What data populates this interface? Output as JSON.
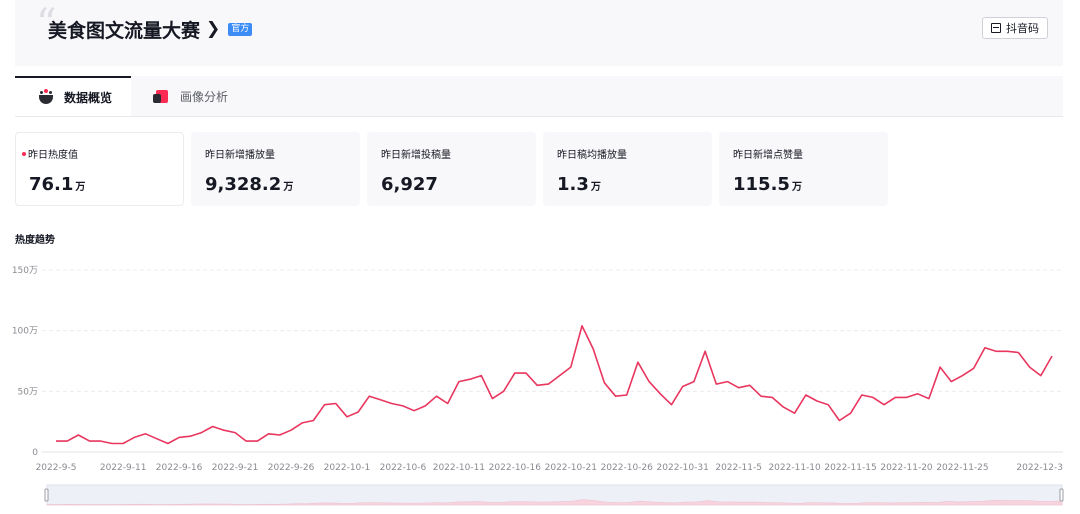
{
  "header": {
    "title": "美食图文流量大赛",
    "chevron": "❯",
    "badge": "官方",
    "douyin_button": "抖音码"
  },
  "tabs": [
    {
      "label": "数据概览",
      "active": true
    },
    {
      "label": "画像分析",
      "active": false
    }
  ],
  "metrics": [
    {
      "label": "昨日热度值",
      "value": "76.1",
      "unit": "万",
      "highlight": true
    },
    {
      "label": "昨日新增播放量",
      "value": "9,328.2",
      "unit": "万"
    },
    {
      "label": "昨日新增投稿量",
      "value": "6,927",
      "unit": ""
    },
    {
      "label": "昨日稿均播放量",
      "value": "1.3",
      "unit": "万"
    },
    {
      "label": "昨日新增点赞量",
      "value": "115.5",
      "unit": "万"
    }
  ],
  "section_title": "热度趋势",
  "colors": {
    "line": "#e8365e",
    "accent": "#fe2c55",
    "badge": "#3c8cf6"
  },
  "chart_data": {
    "type": "line",
    "title": "热度趋势",
    "ylim": [
      0,
      150
    ],
    "yticks": [
      "0",
      "50万",
      "100万",
      "150万"
    ],
    "ytick_values": [
      0,
      50,
      100,
      150
    ],
    "xtick_labels": [
      "2022-9-5",
      "2022-9-11",
      "2022-9-16",
      "2022-9-21",
      "2022-9-26",
      "2022-10-1",
      "2022-10-6",
      "2022-10-11",
      "2022-10-16",
      "2022-10-21",
      "2022-10-26",
      "2022-10-31",
      "2022-11-5",
      "2022-11-10",
      "2022-11-15",
      "2022-11-20",
      "2022-11-25",
      "2022-12-3"
    ],
    "xtick_index": [
      0,
      6,
      11,
      16,
      21,
      26,
      31,
      36,
      41,
      46,
      51,
      56,
      61,
      66,
      71,
      76,
      81,
      89
    ],
    "grid": true,
    "series": [
      {
        "values": [
          9,
          9,
          14,
          9,
          9,
          7,
          7,
          12,
          15,
          11,
          7,
          12,
          13,
          16,
          21,
          18,
          16,
          9,
          9,
          15,
          14,
          18,
          24,
          26,
          39,
          40,
          29,
          33,
          46,
          43,
          40,
          38,
          34,
          38,
          46,
          40,
          58,
          60,
          63,
          44,
          50,
          65,
          65,
          55,
          56,
          63,
          70,
          104,
          85,
          57,
          46,
          47,
          74,
          58,
          48,
          39,
          54,
          58,
          83,
          56,
          58,
          53,
          55,
          46,
          45,
          37,
          32,
          47,
          42,
          39,
          26,
          32,
          47,
          45,
          39,
          45,
          45,
          48,
          44,
          70,
          58,
          63,
          69,
          86,
          83,
          83,
          82,
          70,
          63,
          79
        ]
      }
    ]
  }
}
